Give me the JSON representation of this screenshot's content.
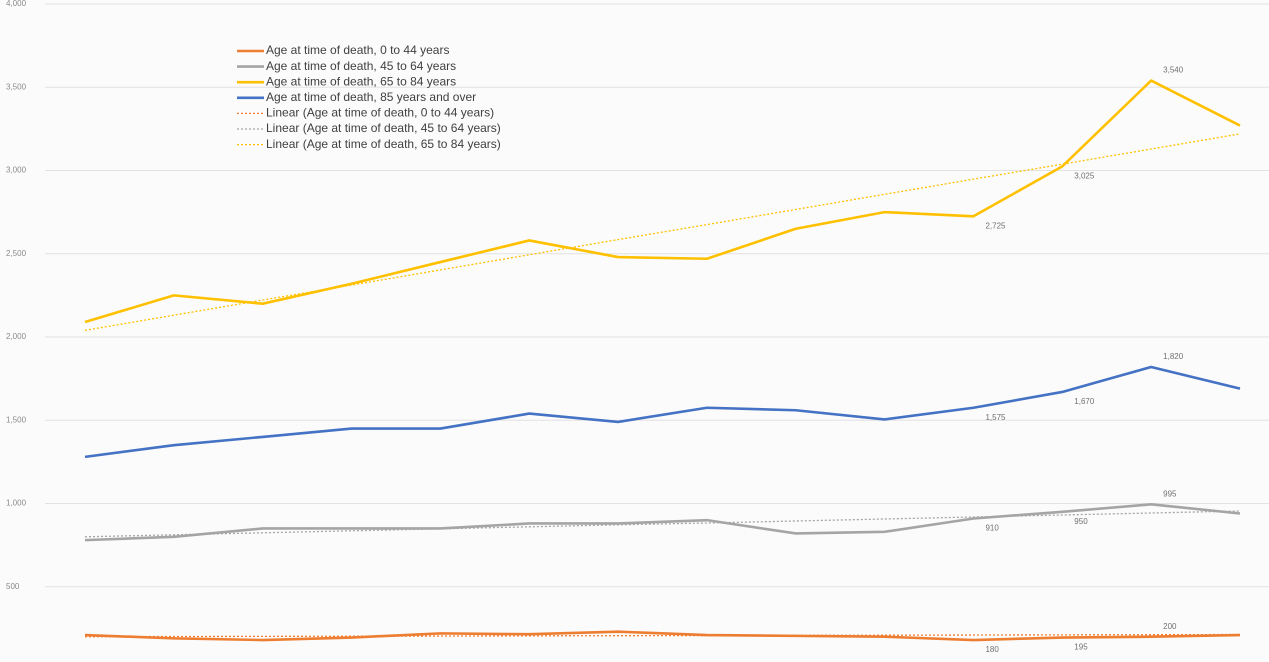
{
  "chart_data": {
    "type": "line",
    "categories": [
      null,
      null,
      null,
      null,
      null,
      null,
      null,
      null,
      null,
      null,
      null,
      null,
      null,
      null
    ],
    "ylim": [
      0,
      4000
    ],
    "yticks": [
      {
        "value": 500,
        "label": "500"
      },
      {
        "value": 1000,
        "label": "1,000"
      },
      {
        "value": 1500,
        "label": "1,500"
      },
      {
        "value": 2000,
        "label": "2,000"
      },
      {
        "value": 2500,
        "label": "2,500"
      },
      {
        "value": 3000,
        "label": "3,000"
      },
      {
        "value": 3500,
        "label": "3,500"
      },
      {
        "value": 4000,
        "label": "4,000"
      }
    ],
    "grid": true,
    "series": [
      {
        "name": "Age at time of death, 0 to 44 years",
        "color": "#ED7D31",
        "line_style": "solid",
        "values": [
          210,
          190,
          180,
          195,
          220,
          215,
          230,
          210,
          205,
          200,
          180,
          195,
          200,
          210
        ],
        "value_labels": [
          null,
          null,
          null,
          null,
          null,
          null,
          null,
          null,
          null,
          null,
          "180",
          "195",
          "200",
          null
        ]
      },
      {
        "name": "Age at time of death, 45 to 64 years",
        "color": "#A5A5A5",
        "line_style": "solid",
        "values": [
          780,
          800,
          850,
          850,
          850,
          880,
          880,
          900,
          820,
          830,
          910,
          950,
          995,
          940
        ],
        "value_labels": [
          null,
          null,
          null,
          null,
          null,
          null,
          null,
          null,
          null,
          null,
          "910",
          "950",
          "995",
          null
        ]
      },
      {
        "name": "Age at time of death, 65 to 84 years",
        "color": "#FFC000",
        "line_style": "solid",
        "values": [
          2090,
          2250,
          2200,
          2320,
          2450,
          2580,
          2480,
          2470,
          2650,
          2750,
          2725,
          3025,
          3540,
          3270
        ],
        "value_labels": [
          null,
          null,
          null,
          null,
          null,
          null,
          null,
          null,
          null,
          null,
          "2,725",
          "3,025",
          "3,540",
          null
        ]
      },
      {
        "name": "Age at time of death, 85 years and over",
        "color": "#4472C4",
        "line_style": "solid",
        "values": [
          1280,
          1350,
          1400,
          1450,
          1450,
          1540,
          1490,
          1575,
          1560,
          1505,
          1575,
          1670,
          1820,
          1690
        ],
        "value_labels": [
          null,
          null,
          null,
          null,
          null,
          null,
          null,
          null,
          null,
          null,
          "1,575",
          "1,670",
          "1,820",
          null
        ]
      },
      {
        "name": "Linear (Age at time of death, 0 to 44 years)",
        "color": "#ED7D31",
        "line_style": "dotted",
        "values": [
          200,
          201,
          202,
          203,
          204,
          205,
          206,
          207,
          208,
          209,
          210,
          211,
          212,
          213
        ]
      },
      {
        "name": "Linear (Age at time of death, 45 to 64 years)",
        "color": "#A5A5A5",
        "line_style": "dotted",
        "values": [
          800,
          812,
          824,
          836,
          848,
          860,
          872,
          883,
          895,
          907,
          919,
          931,
          943,
          955
        ]
      },
      {
        "name": "Linear (Age at time of death, 65 to 84 years)",
        "color": "#FFC000",
        "line_style": "dotted",
        "values": [
          2040,
          2131,
          2222,
          2312,
          2403,
          2494,
          2585,
          2675,
          2766,
          2857,
          2948,
          3038,
          3129,
          3220
        ]
      }
    ]
  }
}
